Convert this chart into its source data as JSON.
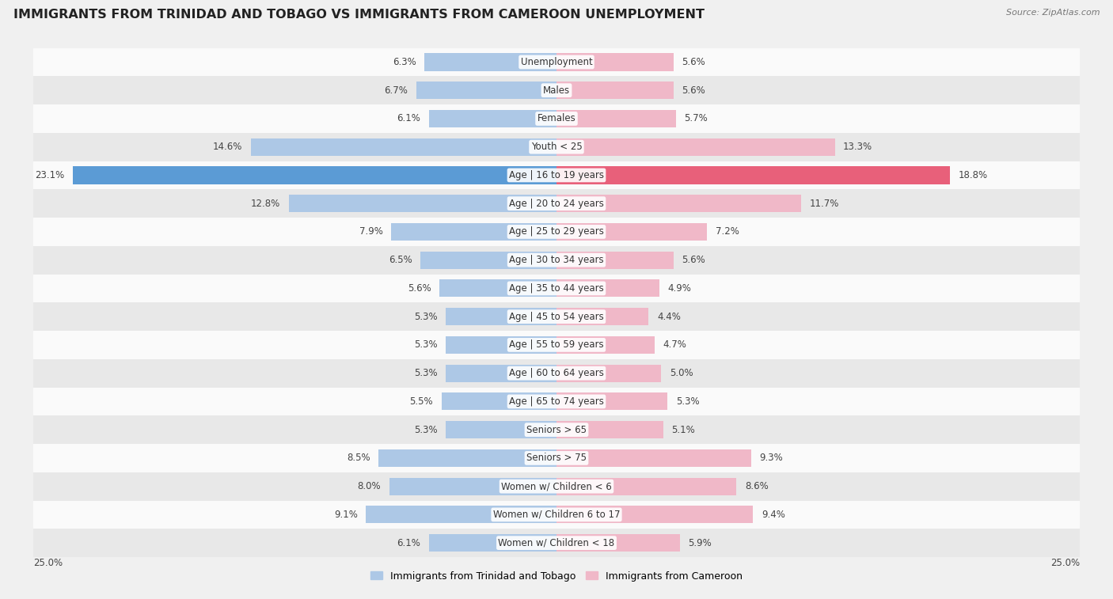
{
  "title": "IMMIGRANTS FROM TRINIDAD AND TOBAGO VS IMMIGRANTS FROM CAMEROON UNEMPLOYMENT",
  "source": "Source: ZipAtlas.com",
  "categories": [
    "Unemployment",
    "Males",
    "Females",
    "Youth < 25",
    "Age | 16 to 19 years",
    "Age | 20 to 24 years",
    "Age | 25 to 29 years",
    "Age | 30 to 34 years",
    "Age | 35 to 44 years",
    "Age | 45 to 54 years",
    "Age | 55 to 59 years",
    "Age | 60 to 64 years",
    "Age | 65 to 74 years",
    "Seniors > 65",
    "Seniors > 75",
    "Women w/ Children < 6",
    "Women w/ Children 6 to 17",
    "Women w/ Children < 18"
  ],
  "left_values": [
    6.3,
    6.7,
    6.1,
    14.6,
    23.1,
    12.8,
    7.9,
    6.5,
    5.6,
    5.3,
    5.3,
    5.3,
    5.5,
    5.3,
    8.5,
    8.0,
    9.1,
    6.1
  ],
  "right_values": [
    5.6,
    5.6,
    5.7,
    13.3,
    18.8,
    11.7,
    7.2,
    5.6,
    4.9,
    4.4,
    4.7,
    5.0,
    5.3,
    5.1,
    9.3,
    8.6,
    9.4,
    5.9
  ],
  "left_color": "#adc8e6",
  "right_color": "#f0b8c8",
  "left_highlight_color": "#5b9bd5",
  "right_highlight_color": "#e8607a",
  "highlight_row": 4,
  "background_color": "#f0f0f0",
  "row_bg_light": "#fafafa",
  "row_bg_dark": "#e8e8e8",
  "bar_height": 0.62,
  "xlim": 25.0,
  "legend_left": "Immigrants from Trinidad and Tobago",
  "legend_right": "Immigrants from Cameroon",
  "title_fontsize": 11.5,
  "source_fontsize": 8,
  "value_fontsize": 8.5,
  "category_fontsize": 8.5
}
